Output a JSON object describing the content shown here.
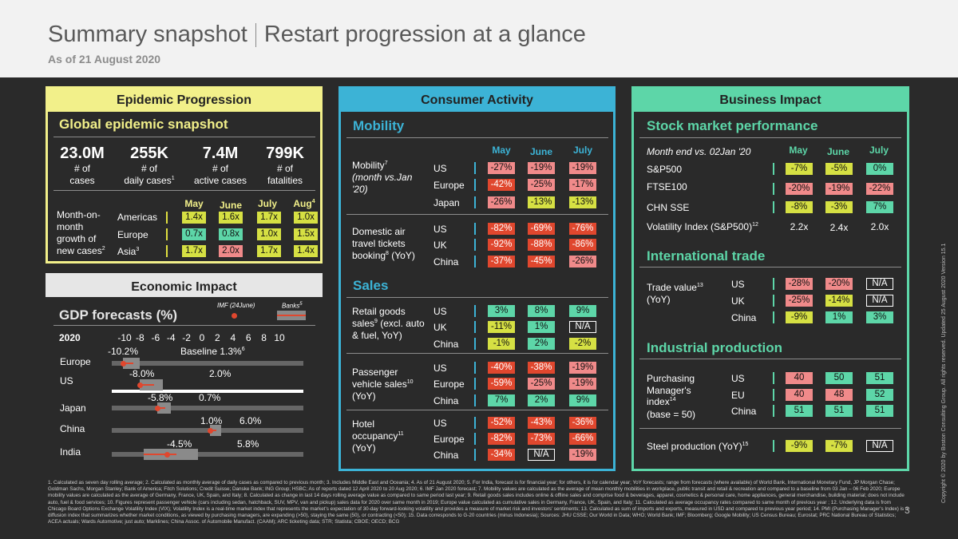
{
  "header": {
    "title_a": "Summary snapshot",
    "title_b": "Restart progression at a glance",
    "subtitle": "As of 21 August 2020"
  },
  "colors": {
    "green": "#5dd6a8",
    "yellow": "#d6e043",
    "pink": "#f08a8a",
    "red": "#e0472e"
  },
  "epidemic": {
    "title": "Epidemic Progression",
    "snapshot_title": "Global epidemic snapshot",
    "kpis": [
      {
        "value": "23.0M",
        "label1": "# of",
        "label2": "cases"
      },
      {
        "value": "255K",
        "label1": "# of",
        "label2": "daily cases",
        "sup": "1"
      },
      {
        "value": "7.4M",
        "label1": "# of",
        "label2": "active cases"
      },
      {
        "value": "799K",
        "label1": "# of",
        "label2": "fatalities"
      }
    ],
    "growth_label": [
      "Month-on-",
      "month",
      "growth of",
      "new cases"
    ],
    "growth_sup": "2",
    "months": [
      "May",
      "June",
      "July",
      "Aug"
    ],
    "aug_sup": "4",
    "rows": [
      {
        "region": "Americas",
        "vals": [
          "1.4x",
          "1.6x",
          "1.7x",
          "1.0x"
        ]
      },
      {
        "region": "Europe",
        "vals": [
          "0.7x",
          "0.8x",
          "1.0x",
          "1.5x"
        ]
      },
      {
        "region": "Asia",
        "sup": "3",
        "vals": [
          "1.7x",
          "2.0x",
          "1.7x",
          "1.4x"
        ]
      }
    ]
  },
  "economic": {
    "title": "Economic Impact",
    "gdp_title": "GDP forecasts (%)",
    "legend_imf": "IMF (24June)",
    "legend_banks": "Banks",
    "legend_banks_sup": "5",
    "year": "2020",
    "axis": [
      "-10",
      "-8",
      "-6",
      "-4",
      "-2",
      "0",
      "2",
      "4",
      "6",
      "8",
      "10"
    ],
    "baseline": "Baseline 1.3%",
    "baseline_sup": "6",
    "rows": [
      {
        "country": "Europe",
        "low": "-10.2%",
        "high": "",
        "imf": -10.2,
        "lo": -10.2,
        "hi": -8.0
      },
      {
        "country": "US",
        "low": "-8.0%",
        "high": "2.0%",
        "imf": -8.0,
        "lo": -8.0,
        "hi": -5.0
      },
      {
        "country": "Japan",
        "low": "-5.8%",
        "high": "0.7%",
        "imf": -5.8,
        "lo": -5.8,
        "hi": -4.0
      },
      {
        "country": "China",
        "low": "1.0%",
        "high": "6.0%",
        "imf": 1.0,
        "lo": 1.0,
        "hi": 2.5
      },
      {
        "country": "India",
        "low": "-4.5%",
        "high": "5.8%",
        "imf": -4.5,
        "lo": -7.5,
        "hi": -0.5
      }
    ]
  },
  "consumer": {
    "title": "Consumer Activity",
    "mobility_title": "Mobility",
    "months": [
      "May",
      "June",
      "July"
    ],
    "mobility": {
      "label": "Mobility",
      "sup": "7",
      "label2": "(month vs.Jan",
      "label3": "'20)",
      "rows": [
        {
          "region": "US",
          "vals": [
            "-27%",
            "-19%",
            "-19%"
          ]
        },
        {
          "region": "Europe",
          "vals": [
            "-42%",
            "-25%",
            "-17%"
          ]
        },
        {
          "region": "Japan",
          "vals": [
            "-26%",
            "-13%",
            "-13%"
          ]
        }
      ]
    },
    "air": {
      "label1": "Domestic air",
      "label2": "travel tickets",
      "label3": "booking",
      "sup": "8",
      "suffix": " (YoY)",
      "rows": [
        {
          "region": "US",
          "vals": [
            "-82%",
            "-69%",
            "-76%"
          ]
        },
        {
          "region": "UK",
          "vals": [
            "-92%",
            "-88%",
            "-86%"
          ]
        },
        {
          "region": "China",
          "vals": [
            "-37%",
            "-45%",
            "-26%"
          ]
        }
      ]
    },
    "sales_title": "Sales",
    "retail": {
      "label1": "Retail goods",
      "label2": "sales",
      "sup": "9",
      "label2b": " (excl. auto",
      "label3": "& fuel, YoY)",
      "rows": [
        {
          "region": "US",
          "vals": [
            "3%",
            "8%",
            "9%"
          ]
        },
        {
          "region": "UK",
          "vals": [
            "-11%",
            "1%",
            "N/A"
          ]
        },
        {
          "region": "China",
          "vals": [
            "-1%",
            "2%",
            "-2%"
          ]
        }
      ]
    },
    "vehicle": {
      "label1": "Passenger",
      "label2": "vehicle sales",
      "sup": "10",
      "label3": "(YoY)",
      "rows": [
        {
          "region": "US",
          "vals": [
            "-40%",
            "-38%",
            "-19%"
          ]
        },
        {
          "region": "Europe",
          "vals": [
            "-59%",
            "-25%",
            "-19%"
          ]
        },
        {
          "region": "China",
          "vals": [
            "7%",
            "2%",
            "9%"
          ]
        }
      ]
    },
    "hotel": {
      "label1": "Hotel",
      "label2": "occupancy",
      "sup": "11",
      "label3": "(YoY)",
      "rows": [
        {
          "region": "US",
          "vals": [
            "-52%",
            "-43%",
            "-36%"
          ]
        },
        {
          "region": "Europe",
          "vals": [
            "-82%",
            "-73%",
            "-66%"
          ]
        },
        {
          "region": "China",
          "vals": [
            "-34%",
            "N/A",
            "-19%"
          ]
        }
      ]
    }
  },
  "business": {
    "title": "Business Impact",
    "stock_title": "Stock market performance",
    "stock_caption": "Month end vs. 02Jan '20",
    "months": [
      "May",
      "June",
      "July"
    ],
    "stock_rows": [
      {
        "name": "S&P500",
        "vals": [
          "-7%",
          "-5%",
          "0%"
        ]
      },
      {
        "name": "FTSE100",
        "vals": [
          "-20%",
          "-19%",
          "-22%"
        ]
      },
      {
        "name": "CHN SSE",
        "vals": [
          "-8%",
          "-3%",
          "7%"
        ]
      }
    ],
    "vix_label": "Volatility Index (S&P500)",
    "vix_sup": "12",
    "vix_vals": [
      "2.2x",
      "2.4x",
      "2.0x"
    ],
    "trade_title": "International trade",
    "trade_label1": "Trade value",
    "trade_sup": "13",
    "trade_label2": "(YoY)",
    "trade_rows": [
      {
        "region": "US",
        "vals": [
          "-28%",
          "-20%",
          "N/A"
        ]
      },
      {
        "region": "UK",
        "vals": [
          "-25%",
          "-14%",
          "N/A"
        ]
      },
      {
        "region": "China",
        "vals": [
          "-9%",
          "1%",
          "3%"
        ]
      }
    ],
    "ind_title": "Industrial production",
    "pmi_label1": "Purchasing",
    "pmi_label2": "Manager's",
    "pmi_label3": "index",
    "pmi_sup": "14",
    "pmi_label4": "(base = 50)",
    "pmi_rows": [
      {
        "region": "US",
        "vals": [
          "40",
          "50",
          "51"
        ]
      },
      {
        "region": "EU",
        "vals": [
          "40",
          "48",
          "52"
        ]
      },
      {
        "region": "China",
        "vals": [
          "51",
          "51",
          "51"
        ]
      }
    ],
    "steel_label": "Steel production (YoY)",
    "steel_sup": "15",
    "steel_vals": [
      "-9%",
      "-7%",
      "N/A"
    ]
  },
  "footnote": "1. Calculated as seven day rolling average; 2. Calculated as monthly average of daily cases as compared to previous month; 3. Includes Middle East and Oceania; 4. As of 21 August 2020; 5. For India, forecast is for financial year; for others, it is for calendar year; YoY forecasts; range from forecasts (where available) of World Bank, International Monetary Fund, JP Morgan Chase; Goldman Sachs, Morgan Stanley; Bank of America; Fitch Solutions; Credit Suisse; Danske Bank; ING Group; HSBC; As of reports dated 12 April 2020 to 20 Aug 2020; 6. IMF Jan 2020 forecast; 7. Mobility values are calculated as the average of mean monthly mobilities in workplace, public transit and retail & recreation and compared to a baseline from 03 Jan – 06 Feb 2020; Europe mobility values are calculated as the average of Germany, France, UK, Spain, and Italy; 8. Calculated as change in last 14 days rolling average value as compared to same period last year; 9. Retail goods sales includes online & offline sales and comprise food & beverages, apparel, cosmetics & personal care, home appliances, general merchandise, building material; does not include auto, fuel & food services; 10. Figures represent passenger vehicle (cars including sedan, hatchback, SUV, MPV, van and pickup) sales data for 2020 over same month in 2019; Europe value calculated as cumulative sales in Germany, France, UK, Spain, and Italy; 11. Calculated as average occupancy rates compared to same month of previous year ; 12. Underlying data is from Chicago Board Options Exchange Volatility Index (VIX); Volatility Index is a real-time market index that represents the market's expectation of 30-day forward-looking volatility and provides a measure of market risk and investors' sentiments; 13. Calculated as sum of imports and exports, measured in USD and compared to previous year period; 14. PMI (Purchasing Manager's Index) is a diffusion index that summarizes whether market conditions, as viewed by purchasing managers, are expanding (>50), staying the same (50), or contracting (<50); 15. Data corresponds to G-20 countries (minus Indonesia); Sources: JHU CSSE; Our World in Data; WHO; World Bank; IMF; Bloomberg; Google Mobility; US Census Bureau; Eurostat; PRC National Bureau of Statistics; ACEA actuals; Wards Automotive; just auto; Marklines; China Assoc. of Automobile Manufact. (CAAM); ARC ticketing data; STR; Statista; CBOE; OECD; BCG",
  "page_number": "3",
  "copyright": "Copyright © 2020 by Boston Consulting Group. All rights reserved. Updated 25 August 2020 Version 15.1"
}
